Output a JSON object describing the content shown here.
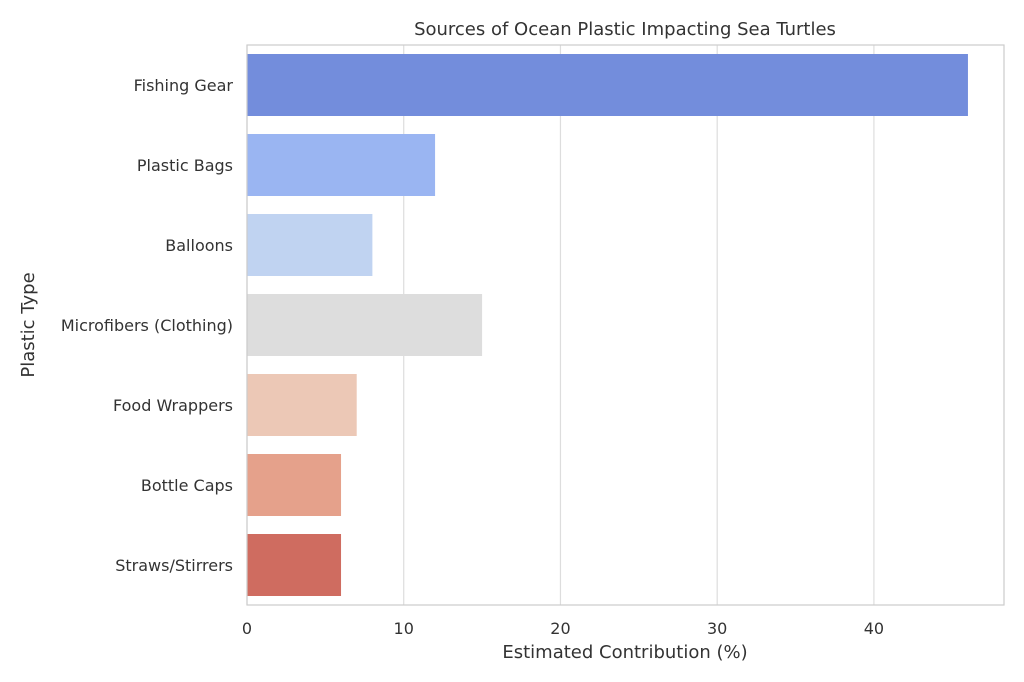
{
  "chart_data": {
    "type": "bar",
    "orientation": "horizontal",
    "title": "Sources of Ocean Plastic Impacting Sea Turtles",
    "xlabel": "Estimated Contribution (%)",
    "ylabel": "Plastic Type",
    "categories": [
      "Fishing Gear",
      "Plastic Bags",
      "Balloons",
      "Microfibers (Clothing)",
      "Food Wrappers",
      "Bottle Caps",
      "Straws/Stirrers"
    ],
    "values": [
      46,
      12,
      8,
      15,
      7,
      6,
      6
    ],
    "colors": [
      "#738ddc",
      "#9ab5f2",
      "#c0d3f1",
      "#dddddd",
      "#ecc8b6",
      "#e5a18b",
      "#cf6c60"
    ],
    "xlim": [
      0,
      48.3
    ],
    "xticks": [
      0,
      10,
      20,
      30,
      40
    ],
    "grid": true
  }
}
